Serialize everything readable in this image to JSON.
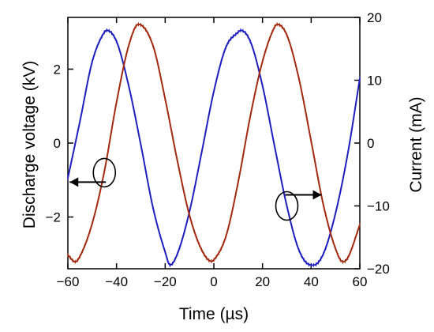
{
  "chart_data": {
    "type": "line",
    "xlabel": "Time (µs)",
    "ylabel_left": "Discharge voltage (kV)",
    "ylabel_right": "Current  (mA)",
    "xlim": [
      -60,
      60
    ],
    "ylim_left": [
      -3.4,
      3.4
    ],
    "ylim_right": [
      -20,
      20
    ],
    "x_ticks": [
      -60,
      -40,
      -20,
      0,
      20,
      40,
      60
    ],
    "y_left_ticks": [
      -2,
      0,
      2
    ],
    "y_right_ticks": [
      -20,
      -10,
      0,
      10,
      20
    ],
    "grid": false,
    "series": [
      {
        "axis": "left",
        "color": "#1f1fbf",
        "x": [
          -60,
          -55,
          -50,
          -45,
          -44,
          -40,
          -35,
          -30,
          -25,
          -20,
          -18,
          -15,
          -10,
          -5,
          0,
          5,
          10,
          11,
          15,
          20,
          25,
          30,
          35,
          40,
          41,
          45,
          50,
          55,
          60
        ],
        "y": [
          -0.95,
          0.6,
          2.2,
          3.0,
          3.05,
          2.75,
          1.55,
          -0.05,
          -1.75,
          -2.95,
          -3.3,
          -3.0,
          -1.85,
          -0.25,
          1.4,
          2.6,
          3.0,
          3.05,
          2.75,
          1.55,
          -0.1,
          -1.7,
          -2.9,
          -3.3,
          -3.3,
          -3.0,
          -1.9,
          -0.3,
          1.75
        ]
      },
      {
        "axis": "right",
        "color": "#a32a10",
        "x": [
          -60,
          -57,
          -55,
          -50,
          -45,
          -40,
          -35,
          -31,
          -25,
          -20,
          -15,
          -10,
          -5,
          -1,
          0,
          5,
          10,
          15,
          20,
          25,
          26,
          30,
          35,
          40,
          45,
          50,
          53,
          55,
          60
        ],
        "y": [
          -17.8,
          -18.9,
          -18.0,
          -12.8,
          -4.5,
          6.5,
          15.5,
          18.9,
          15.5,
          7.0,
          -2.8,
          -11.5,
          -17.0,
          -18.8,
          -18.6,
          -14.8,
          -6.2,
          4.3,
          13.0,
          18.5,
          18.9,
          17.2,
          10.2,
          0.3,
          -9.8,
          -16.8,
          -18.9,
          -18.3,
          -13.0
        ]
      }
    ],
    "annotations": [
      {
        "type": "circle-arrow",
        "series": "left",
        "direction": "left",
        "x": -45,
        "y_left": -0.8
      },
      {
        "type": "circle-arrow",
        "series": "right",
        "direction": "right",
        "x": 30,
        "y_right": -10
      }
    ]
  }
}
